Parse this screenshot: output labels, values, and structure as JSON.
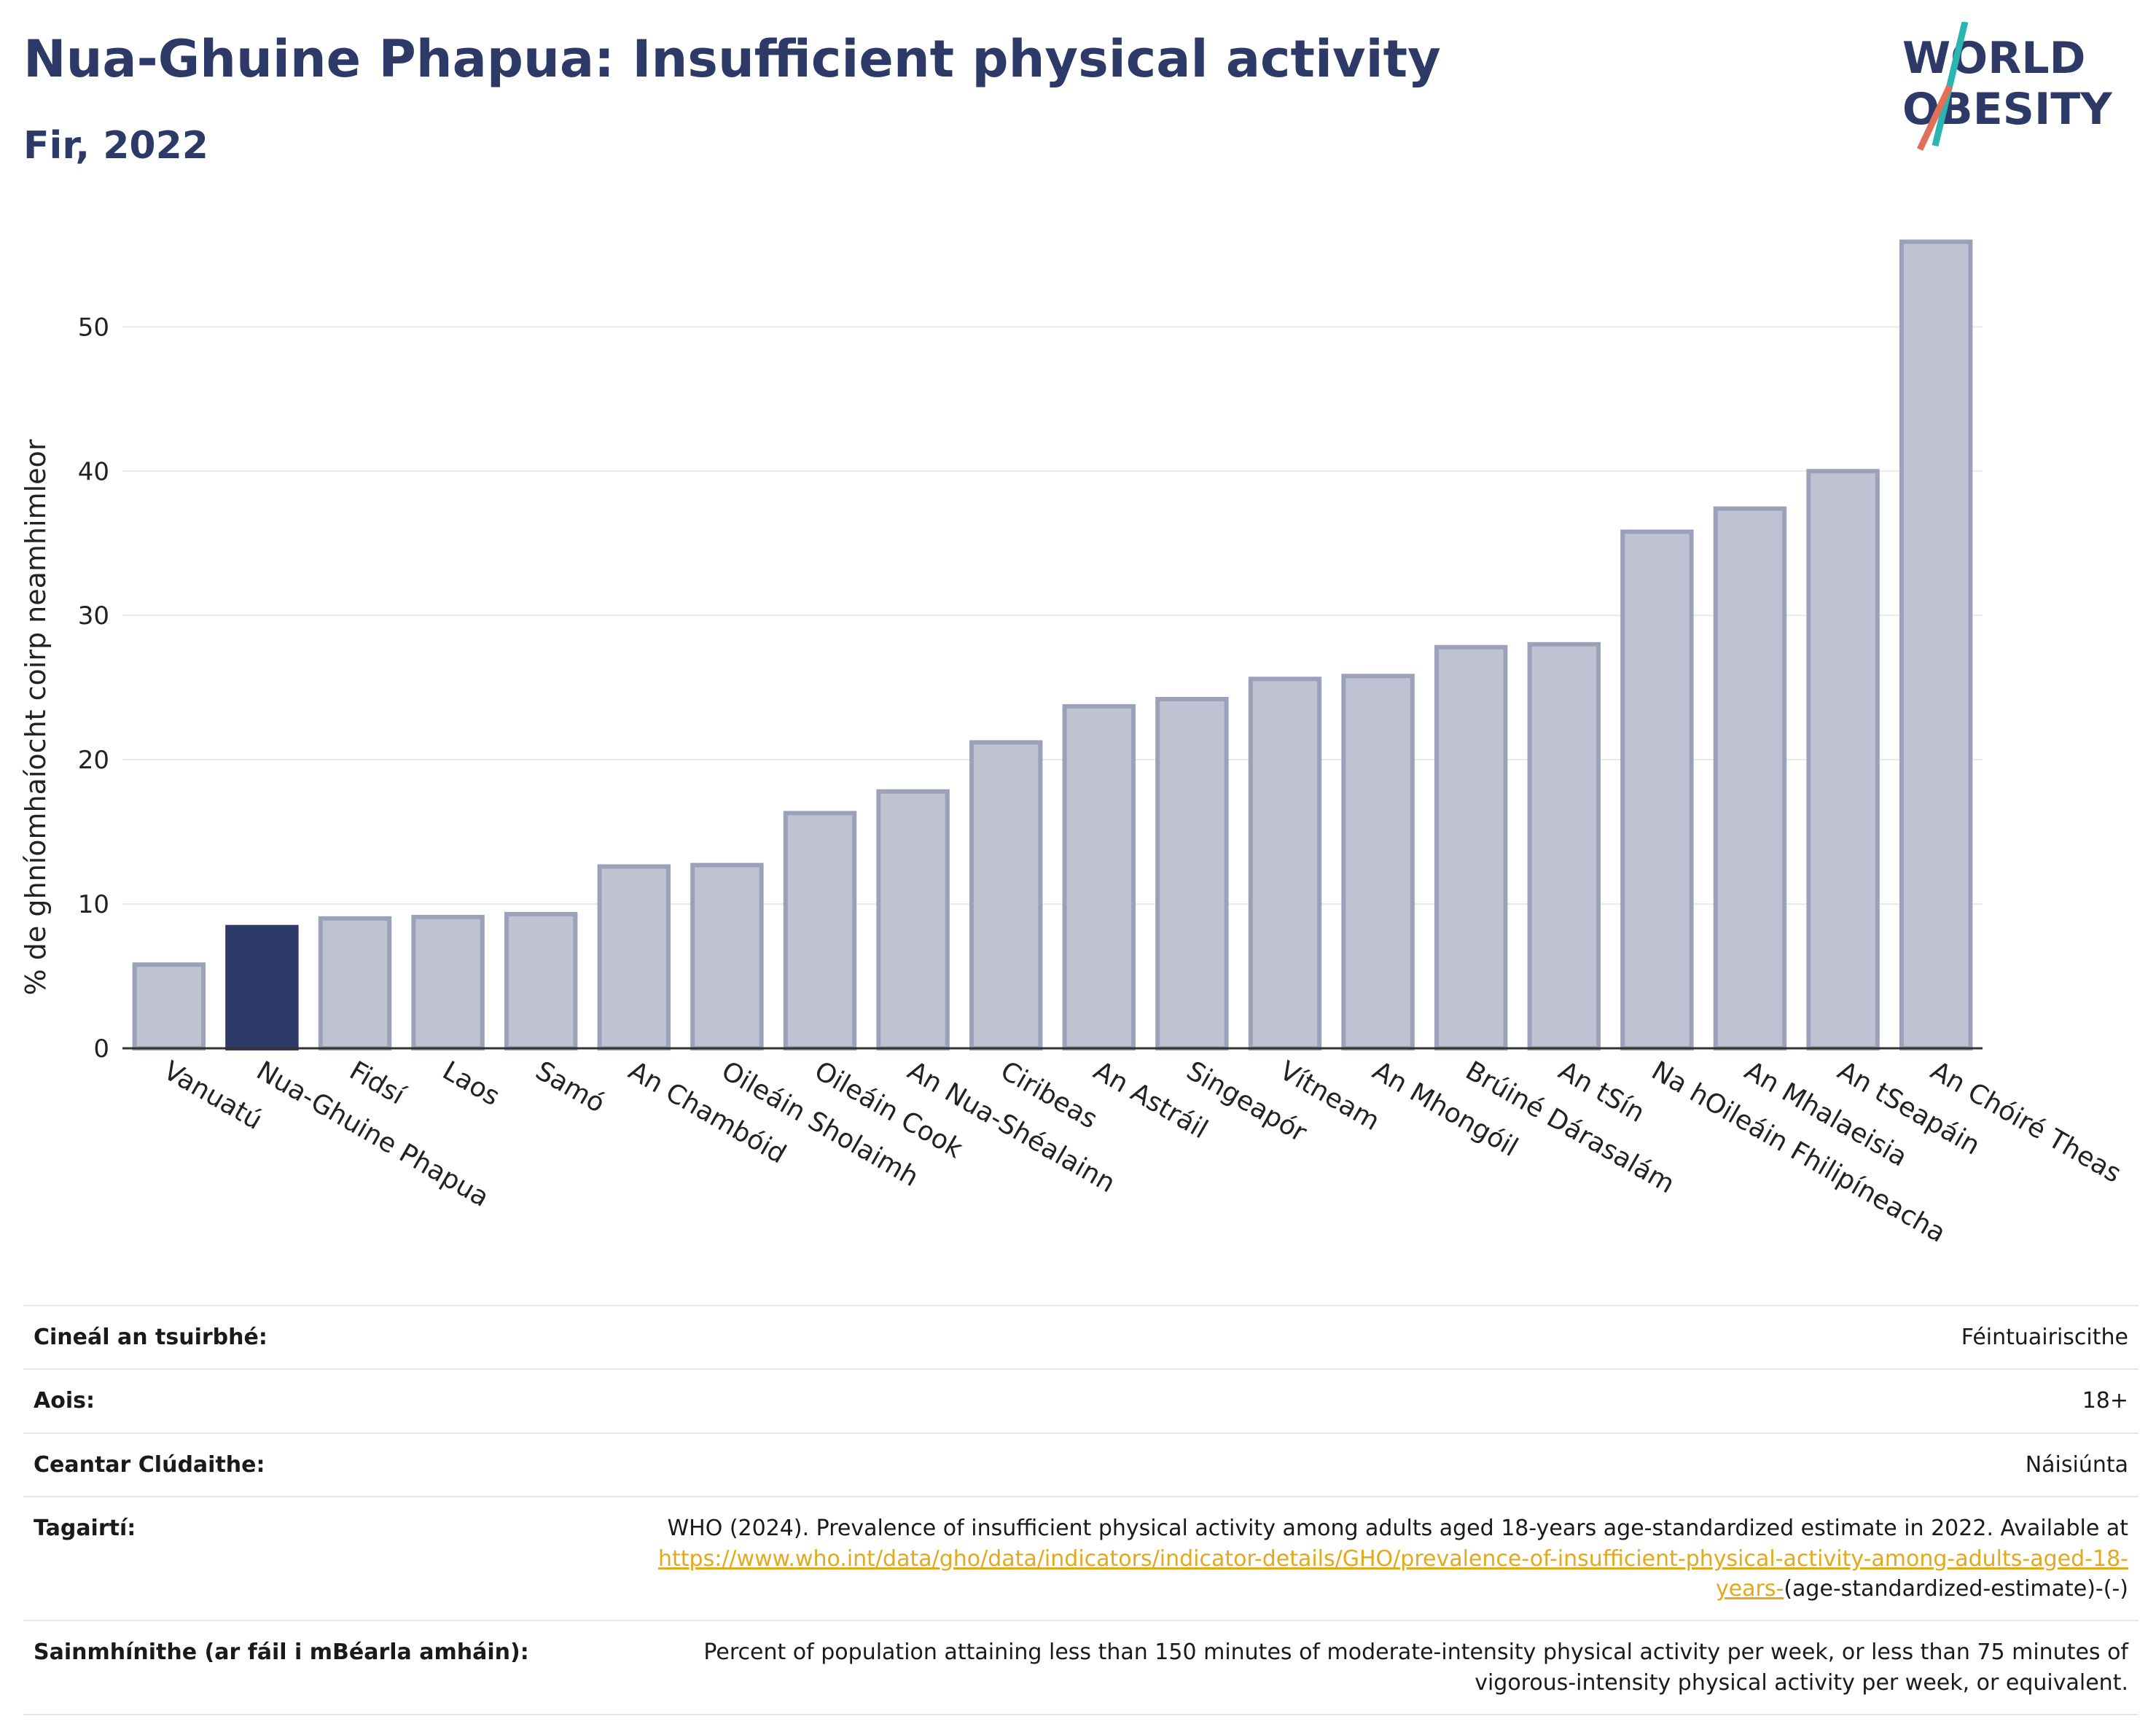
{
  "header": {
    "title": "Nua-Ghuine Phapua: Insufficient physical activity",
    "subtitle": "Fir, 2022"
  },
  "logo": {
    "line1": "WORLD",
    "line2": "OBESITY"
  },
  "colors": {
    "highlight": "#2d3a67",
    "bar": "#bfc3d1",
    "bar_border": "#9ba1b9",
    "grid": "#e9e9ee"
  },
  "chart_data": {
    "type": "bar",
    "ylabel": "% de ghníomhaíocht coirp neamhimleor",
    "xlabel": "",
    "ylim": [
      0,
      58
    ],
    "yticks": [
      0,
      10,
      20,
      30,
      40,
      50
    ],
    "grid": true,
    "highlight": "Nua-Ghuine Phapua",
    "categories": [
      "Vanuatú",
      "Nua-Ghuine Phapua",
      "Fidsí",
      "Laos",
      "Samó",
      "An Chambóid",
      "Oileáin Sholaimh",
      "Oileáin Cook",
      "An Nua-Shéalainn",
      "Ciribeas",
      "An Astráil",
      "Singeapór",
      "Vítneam",
      "An Mhongóil",
      "Brúiné Dárasalám",
      "An tSín",
      "Na hOileáin Fhilipíneacha",
      "An Mhalaeisia",
      "An tSeapáin",
      "An Chóiré Theas"
    ],
    "values": [
      5.8,
      8.4,
      9.0,
      9.1,
      9.3,
      12.6,
      12.7,
      16.3,
      17.8,
      21.2,
      23.7,
      24.2,
      25.6,
      25.8,
      27.8,
      28.0,
      35.8,
      37.4,
      40.0,
      55.9
    ]
  },
  "meta": [
    {
      "key": "Cineál an tsuirbhé:",
      "value": "Féintuairiscithe"
    },
    {
      "key": "Aois:",
      "value": "18+"
    },
    {
      "key": "Ceantar Clúdaithe:",
      "value": "Náisiúnta"
    },
    {
      "key": "Tagairtí:",
      "value": "WHO (2024). Prevalence of insufficient physical activity among adults aged 18-years age-standardized estimate in 2022. Available at ",
      "link": "https://www.who.int/data/gho/data/indicators/indicator-details/GHO/prevalence-of-insufficient-physical-activity-among-adults-aged-18-years-",
      "suffix": "(age-standardized-estimate)-(-)"
    },
    {
      "key": "Sainmhínithe (ar fáil i mBéarla amháin):",
      "value": "Percent of population attaining less than 150 minutes of moderate-intensity physical activity per week, or less than 75 minutes of vigorous-intensity physical activity per week, or equivalent."
    }
  ]
}
